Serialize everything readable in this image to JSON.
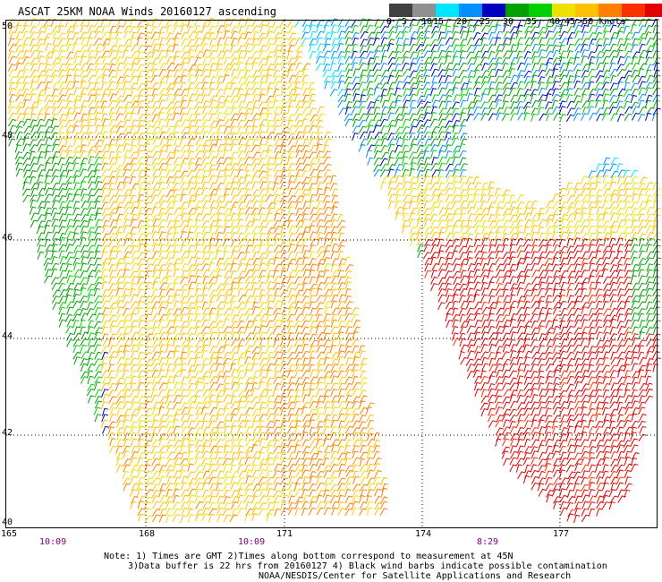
{
  "title": "ASCAT 25KM NOAA Winds 20160127 ascending",
  "colorbar": {
    "colors": [
      "#404040",
      "#909090",
      "#00e5ff",
      "#0090ff",
      "#0000c0",
      "#00a000",
      "#00d000",
      "#f0e000",
      "#ffc000",
      "#ff8000",
      "#ff3000",
      "#e00000",
      "#804000",
      "#ff00ff",
      "#c000ff",
      "#8000c0"
    ],
    "labels": [
      "0",
      "5",
      "10",
      "15",
      "20",
      "25",
      "30",
      "35",
      "40",
      "45",
      ">50 knots"
    ],
    "label_positions": [
      0,
      1.3,
      3,
      4,
      6,
      8,
      10,
      12,
      14,
      15.3,
      16.4
    ]
  },
  "lat_labels": [
    "50",
    "48",
    "46",
    "44",
    "42",
    "40"
  ],
  "lon_labels": [
    "165",
    "168",
    "171",
    "174",
    "177"
  ],
  "time_labels": [
    "10:09",
    "10:09",
    "8:29"
  ],
  "notes": {
    "line1": "Note: 1) Times are GMT 2)Times along bottom correspond to measurement at 45N",
    "line2": "3)Data buffer is 22 hrs from 20160127 4) Black wind barbs indicate possible contamination",
    "line3": "NOAA/NESDIS/Center for Satellite Applications and Research"
  }
}
